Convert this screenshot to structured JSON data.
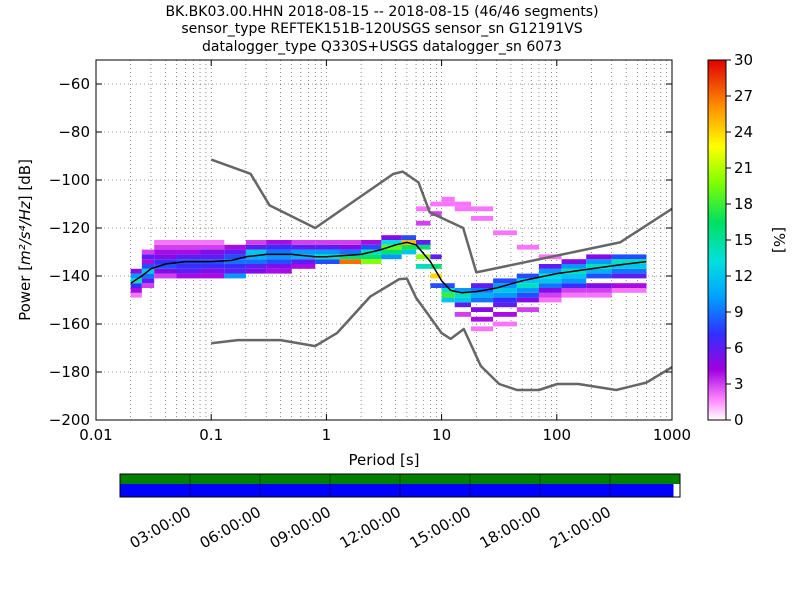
{
  "title_lines": [
    "BK.BK03.00.HHN   2018-08-15 -- 2018-08-15  (46/46 segments)",
    "sensor_type REFTEK151B-120USGS sensor_sn G12191VS",
    "datalogger_type Q330S+USGS datalogger_sn 6073"
  ],
  "chart_data": {
    "type": "heatmap",
    "x_scale": "log",
    "xlim": [
      0.01,
      1000
    ],
    "ylim": [
      -200,
      -50
    ],
    "xlabel": "Period [s]",
    "ylabel_prefix": "Power [",
    "ylabel_units": "m²/s⁴/Hz",
    "ylabel_suffix": "] [dB]",
    "x_ticks": [
      {
        "value": 0.01,
        "label": "0.01"
      },
      {
        "value": 0.1,
        "label": "0.1"
      },
      {
        "value": 1,
        "label": "1"
      },
      {
        "value": 10,
        "label": "10"
      },
      {
        "value": 100,
        "label": "100"
      },
      {
        "value": 1000,
        "label": "1000"
      }
    ],
    "y_ticks": [
      {
        "value": -60,
        "label": "−60"
      },
      {
        "value": -80,
        "label": "−80"
      },
      {
        "value": -100,
        "label": "−100"
      },
      {
        "value": -120,
        "label": "−120"
      },
      {
        "value": -140,
        "label": "−140"
      },
      {
        "value": -160,
        "label": "−160"
      },
      {
        "value": -180,
        "label": "−180"
      },
      {
        "value": -200,
        "label": "−200"
      }
    ],
    "grid": true,
    "colorbar": {
      "label": "[%]",
      "range": [
        0,
        30
      ],
      "ticks": [
        {
          "value": 0,
          "label": "0"
        },
        {
          "value": 3,
          "label": "3"
        },
        {
          "value": 6,
          "label": "6"
        },
        {
          "value": 9,
          "label": "9"
        },
        {
          "value": 12,
          "label": "12"
        },
        {
          "value": 15,
          "label": "15"
        },
        {
          "value": 18,
          "label": "18"
        },
        {
          "value": 21,
          "label": "21"
        },
        {
          "value": 24,
          "label": "24"
        },
        {
          "value": 27,
          "label": "27"
        },
        {
          "value": 30,
          "label": "30"
        }
      ]
    },
    "noise_model_high": [
      [
        0.1,
        -91.5
      ],
      [
        0.22,
        -97.4
      ],
      [
        0.32,
        -110.5
      ],
      [
        0.8,
        -120
      ],
      [
        3.8,
        -97.5
      ],
      [
        4.6,
        -96.5
      ],
      [
        6.3,
        -101
      ],
      [
        7.9,
        -113.5
      ],
      [
        15.4,
        -120
      ],
      [
        20,
        -138.5
      ],
      [
        354,
        -126
      ],
      [
        1000,
        -112
      ]
    ],
    "noise_model_low": [
      [
        0.1,
        -168
      ],
      [
        0.17,
        -166.7
      ],
      [
        0.4,
        -166.7
      ],
      [
        0.8,
        -169.2
      ],
      [
        1.24,
        -163.7
      ],
      [
        2.4,
        -148.6
      ],
      [
        4.3,
        -141.3
      ],
      [
        5.0,
        -141.1
      ],
      [
        6.0,
        -149
      ],
      [
        10,
        -163.8
      ],
      [
        12,
        -166.2
      ],
      [
        15.6,
        -162.1
      ],
      [
        21.9,
        -177.5
      ],
      [
        31.6,
        -185
      ],
      [
        45,
        -187.5
      ],
      [
        70,
        -187.5
      ],
      [
        101,
        -185
      ],
      [
        154,
        -185
      ],
      [
        328,
        -187.5
      ],
      [
        600,
        -184.4
      ],
      [
        1000,
        -178
      ]
    ],
    "median_curve": [
      [
        0.02,
        -143
      ],
      [
        0.025,
        -140
      ],
      [
        0.03,
        -137
      ],
      [
        0.04,
        -135
      ],
      [
        0.06,
        -134
      ],
      [
        0.1,
        -134
      ],
      [
        0.15,
        -133.5
      ],
      [
        0.2,
        -132
      ],
      [
        0.3,
        -131
      ],
      [
        0.5,
        -131
      ],
      [
        0.8,
        -132
      ],
      [
        1,
        -132
      ],
      [
        2,
        -131
      ],
      [
        3,
        -129
      ],
      [
        4,
        -127
      ],
      [
        5,
        -126
      ],
      [
        6,
        -127
      ],
      [
        8,
        -134
      ],
      [
        10,
        -142
      ],
      [
        12,
        -146
      ],
      [
        15,
        -147
      ],
      [
        20,
        -146.5
      ],
      [
        30,
        -145
      ],
      [
        50,
        -142
      ],
      [
        100,
        -139
      ],
      [
        200,
        -137
      ],
      [
        400,
        -135
      ],
      [
        600,
        -134
      ]
    ],
    "density_bands": [
      {
        "x_from": 0.02,
        "x_to": 0.025,
        "bins": [
          [
            -148,
            2
          ],
          [
            -146,
            4
          ],
          [
            -144,
            7
          ],
          [
            -142,
            14
          ],
          [
            -140,
            10
          ],
          [
            -138,
            5
          ]
        ]
      },
      {
        "x_from": 0.025,
        "x_to": 0.032,
        "bins": [
          [
            -144,
            3
          ],
          [
            -142,
            6
          ],
          [
            -140,
            9
          ],
          [
            -138,
            12
          ],
          [
            -136,
            8
          ],
          [
            -134,
            4
          ],
          [
            -132,
            6
          ],
          [
            -130,
            3
          ]
        ]
      },
      {
        "x_from": 0.032,
        "x_to": 0.05,
        "bins": [
          [
            -140,
            3
          ],
          [
            -138,
            5
          ],
          [
            -136,
            8
          ],
          [
            -134,
            7
          ],
          [
            -132,
            5
          ],
          [
            -130,
            4
          ],
          [
            -128,
            3
          ],
          [
            -126,
            2
          ]
        ]
      },
      {
        "x_from": 0.05,
        "x_to": 0.08,
        "bins": [
          [
            -140,
            4
          ],
          [
            -138,
            6
          ],
          [
            -136,
            7
          ],
          [
            -134,
            8
          ],
          [
            -132,
            6
          ],
          [
            -130,
            4
          ],
          [
            -128,
            3
          ],
          [
            -126,
            2
          ]
        ]
      },
      {
        "x_from": 0.08,
        "x_to": 0.13,
        "bins": [
          [
            -140,
            4
          ],
          [
            -138,
            5
          ],
          [
            -136,
            7
          ],
          [
            -134,
            8
          ],
          [
            -132,
            6
          ],
          [
            -130,
            5
          ],
          [
            -128,
            3
          ],
          [
            -126,
            2
          ]
        ]
      },
      {
        "x_from": 0.13,
        "x_to": 0.2,
        "bins": [
          [
            -140,
            10
          ],
          [
            -138,
            6
          ],
          [
            -136,
            7
          ],
          [
            -134,
            9
          ],
          [
            -132,
            8
          ],
          [
            -130,
            6
          ],
          [
            -128,
            4
          ]
        ]
      },
      {
        "x_from": 0.2,
        "x_to": 0.3,
        "bins": [
          [
            -138,
            5
          ],
          [
            -136,
            6
          ],
          [
            -134,
            9
          ],
          [
            -132,
            11
          ],
          [
            -130,
            12
          ],
          [
            -128,
            6
          ],
          [
            -126,
            3
          ]
        ]
      },
      {
        "x_from": 0.3,
        "x_to": 0.5,
        "bins": [
          [
            -138,
            4
          ],
          [
            -136,
            5
          ],
          [
            -134,
            8
          ],
          [
            -132,
            10
          ],
          [
            -130,
            9
          ],
          [
            -128,
            7
          ],
          [
            -126,
            4
          ]
        ]
      },
      {
        "x_from": 0.5,
        "x_to": 0.8,
        "bins": [
          [
            -136,
            4
          ],
          [
            -134,
            6
          ],
          [
            -132,
            11
          ],
          [
            -130,
            10
          ],
          [
            -128,
            6
          ],
          [
            -126,
            3
          ]
        ]
      },
      {
        "x_from": 0.8,
        "x_to": 1.3,
        "bins": [
          [
            -134,
            8
          ],
          [
            -132,
            14
          ],
          [
            -130,
            10
          ],
          [
            -128,
            6
          ],
          [
            -126,
            3
          ]
        ]
      },
      {
        "x_from": 1.3,
        "x_to": 2,
        "bins": [
          [
            -134,
            27
          ],
          [
            -132,
            16
          ],
          [
            -130,
            9
          ],
          [
            -128,
            5
          ],
          [
            -126,
            3
          ]
        ]
      },
      {
        "x_from": 2,
        "x_to": 3,
        "bins": [
          [
            -134,
            20
          ],
          [
            -132,
            16
          ],
          [
            -130,
            14
          ],
          [
            -128,
            8
          ],
          [
            -126,
            4
          ]
        ]
      },
      {
        "x_from": 3,
        "x_to": 4.5,
        "bins": [
          [
            -132,
            10
          ],
          [
            -130,
            16
          ],
          [
            -128,
            19
          ],
          [
            -126,
            13
          ],
          [
            -124,
            5
          ]
        ]
      },
      {
        "x_from": 4.5,
        "x_to": 6,
        "bins": [
          [
            -130,
            12
          ],
          [
            -128,
            17
          ],
          [
            -126,
            25
          ],
          [
            -124,
            8
          ]
        ]
      },
      {
        "x_from": 6,
        "x_to": 8,
        "bins": [
          [
            -136,
            14
          ],
          [
            -132,
            20
          ],
          [
            -128,
            16
          ],
          [
            -126,
            6
          ],
          [
            -118,
            3
          ],
          [
            -112,
            2
          ]
        ]
      },
      {
        "x_from": 8,
        "x_to": 10,
        "bins": [
          [
            -144,
            8
          ],
          [
            -140,
            24
          ],
          [
            -136,
            16
          ],
          [
            -132,
            6
          ],
          [
            -114,
            3
          ],
          [
            -110,
            2
          ]
        ]
      },
      {
        "x_from": 10,
        "x_to": 13,
        "bins": [
          [
            -150,
            12
          ],
          [
            -148,
            18
          ],
          [
            -146,
            14
          ],
          [
            -144,
            8
          ],
          [
            -110,
            2
          ],
          [
            -108,
            2
          ]
        ]
      },
      {
        "x_from": 13,
        "x_to": 18,
        "bins": [
          [
            -156,
            3
          ],
          [
            -152,
            6
          ],
          [
            -150,
            12
          ],
          [
            -148,
            14
          ],
          [
            -146,
            10
          ],
          [
            -112,
            2
          ],
          [
            -110,
            2
          ]
        ]
      },
      {
        "x_from": 18,
        "x_to": 28,
        "bins": [
          [
            -162,
            2
          ],
          [
            -158,
            4
          ],
          [
            -154,
            5
          ],
          [
            -150,
            9
          ],
          [
            -148,
            11
          ],
          [
            -146,
            9
          ],
          [
            -144,
            6
          ],
          [
            -116,
            2
          ],
          [
            -112,
            2
          ]
        ]
      },
      {
        "x_from": 28,
        "x_to": 45,
        "bins": [
          [
            -160,
            2
          ],
          [
            -156,
            4
          ],
          [
            -152,
            6
          ],
          [
            -150,
            7
          ],
          [
            -148,
            10
          ],
          [
            -146,
            12
          ],
          [
            -144,
            10
          ],
          [
            -142,
            8
          ],
          [
            -122,
            2
          ]
        ]
      },
      {
        "x_from": 45,
        "x_to": 70,
        "bins": [
          [
            -154,
            3
          ],
          [
            -150,
            5
          ],
          [
            -148,
            8
          ],
          [
            -146,
            10
          ],
          [
            -144,
            14
          ],
          [
            -142,
            12
          ],
          [
            -140,
            8
          ],
          [
            -128,
            2
          ]
        ]
      },
      {
        "x_from": 70,
        "x_to": 110,
        "bins": [
          [
            -150,
            2
          ],
          [
            -148,
            3
          ],
          [
            -146,
            5
          ],
          [
            -144,
            9
          ],
          [
            -142,
            12
          ],
          [
            -140,
            13
          ],
          [
            -138,
            10
          ],
          [
            -136,
            6
          ],
          [
            -132,
            2
          ]
        ]
      },
      {
        "x_from": 110,
        "x_to": 180,
        "bins": [
          [
            -148,
            2
          ],
          [
            -146,
            3
          ],
          [
            -144,
            7
          ],
          [
            -142,
            10
          ],
          [
            -140,
            12
          ],
          [
            -138,
            14
          ],
          [
            -136,
            10
          ],
          [
            -134,
            5
          ]
        ]
      },
      {
        "x_from": 180,
        "x_to": 300,
        "bins": [
          [
            -148,
            2
          ],
          [
            -146,
            3
          ],
          [
            -144,
            5
          ],
          [
            -140,
            8
          ],
          [
            -138,
            11
          ],
          [
            -136,
            14
          ],
          [
            -134,
            10
          ],
          [
            -132,
            5
          ]
        ]
      },
      {
        "x_from": 300,
        "x_to": 600,
        "bins": [
          [
            -146,
            2
          ],
          [
            -144,
            4
          ],
          [
            -140,
            6
          ],
          [
            -138,
            9
          ],
          [
            -136,
            12
          ],
          [
            -134,
            14
          ],
          [
            -132,
            8
          ]
        ]
      }
    ]
  },
  "timeline": {
    "ticks": [
      "03:00:00",
      "06:00:00",
      "09:00:00",
      "12:00:00",
      "15:00:00",
      "18:00:00",
      "21:00:00"
    ],
    "tick_hours": [
      3,
      6,
      9,
      12,
      15,
      18,
      21
    ],
    "span_hours": 24,
    "data_coverage_hours": 23.72,
    "data_color": "#008000",
    "coverage_color": "#0000ff"
  }
}
